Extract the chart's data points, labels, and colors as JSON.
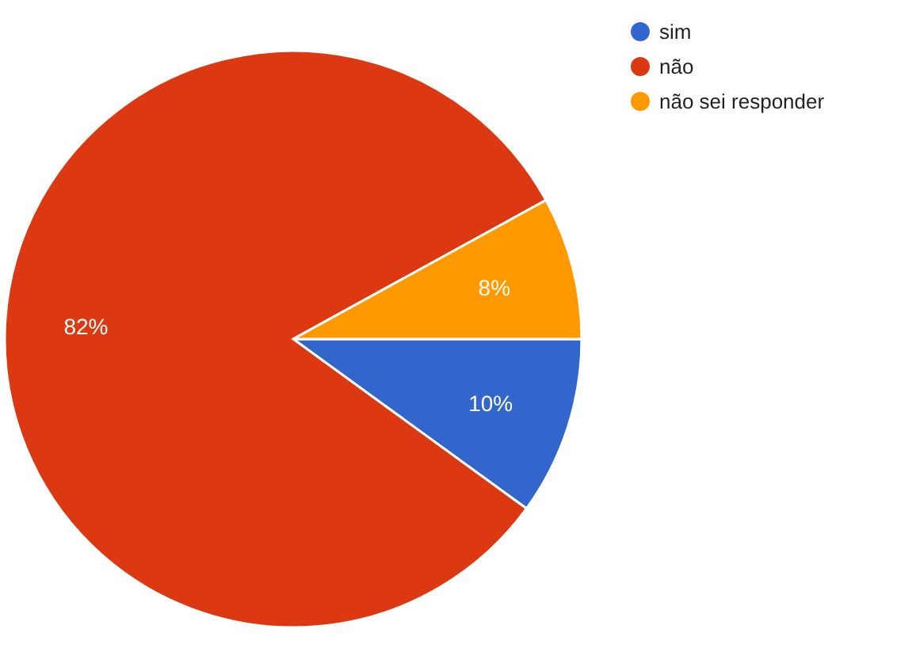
{
  "chart_data": {
    "type": "pie",
    "categories": [
      "sim",
      "não",
      "não sei responder"
    ],
    "values": [
      10,
      82,
      8
    ],
    "colors": [
      "#3366cc",
      "#dc3912",
      "#ff9900"
    ],
    "value_labels": [
      "10%",
      "82%",
      "8%"
    ],
    "legend": "top right"
  }
}
